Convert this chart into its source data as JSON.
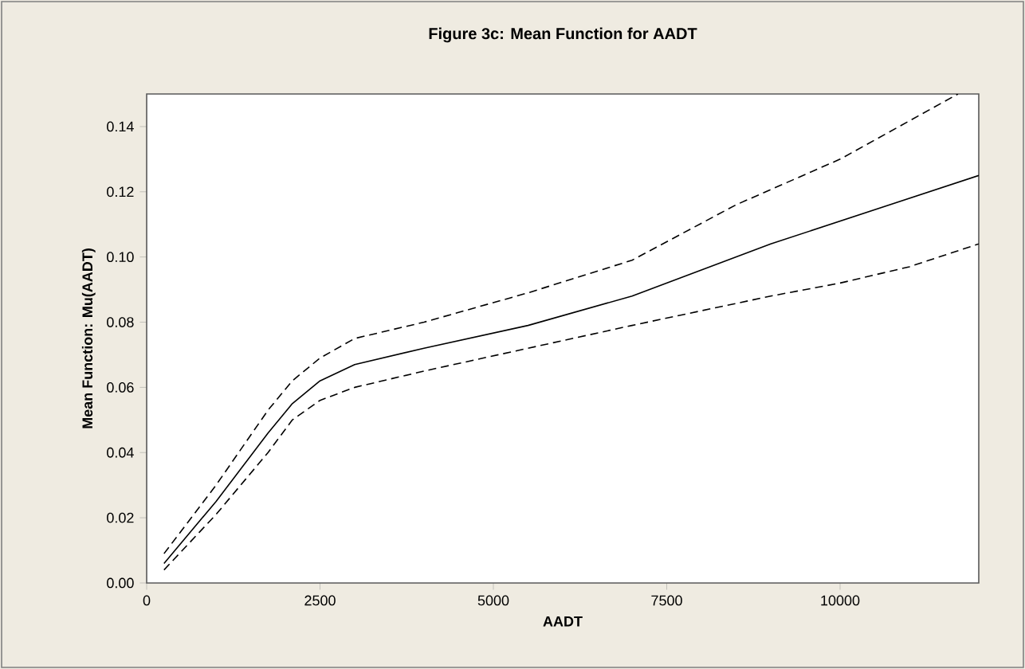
{
  "chart_data": {
    "type": "line",
    "title": "Figure 3c: Mean Function for AADT",
    "xlabel": "AADT",
    "ylabel": "Mean Function: Mu(AADT)",
    "xlim": [
      0,
      12000
    ],
    "ylim": [
      0,
      0.15
    ],
    "xticks": [
      0,
      2500,
      5000,
      7500,
      10000
    ],
    "yticks": [
      {
        "value": 0,
        "label": "0.00"
      },
      {
        "value": 0.02,
        "label": "0.02"
      },
      {
        "value": 0.04,
        "label": "0.04"
      },
      {
        "value": 0.06,
        "label": "0.06"
      },
      {
        "value": 0.08,
        "label": "0.08"
      },
      {
        "value": 0.1,
        "label": "0.10"
      },
      {
        "value": 0.12,
        "label": "0.12"
      },
      {
        "value": 0.14,
        "label": "0.14"
      }
    ],
    "series": [
      {
        "color": "#000000",
        "line_style": "dashed",
        "x": [
          250,
          1000,
          1750,
          2100,
          2500,
          3000,
          4000,
          5500,
          7000,
          8500,
          10000,
          11700
        ],
        "values": [
          0.009,
          0.03,
          0.053,
          0.062,
          0.069,
          0.075,
          0.08,
          0.089,
          0.099,
          0.116,
          0.13,
          0.15
        ]
      },
      {
        "color": "#000000",
        "line_style": "solid",
        "x": [
          250,
          1000,
          1750,
          2100,
          2500,
          3000,
          4000,
          5500,
          7000,
          9000,
          12000
        ],
        "values": [
          0.006,
          0.025,
          0.046,
          0.055,
          0.062,
          0.067,
          0.072,
          0.079,
          0.088,
          0.104,
          0.125
        ]
      },
      {
        "color": "#000000",
        "line_style": "dashed",
        "x": [
          250,
          1000,
          1750,
          2100,
          2500,
          3000,
          4000,
          5500,
          7000,
          9000,
          10000,
          11000,
          12000
        ],
        "values": [
          0.004,
          0.021,
          0.04,
          0.05,
          0.056,
          0.06,
          0.065,
          0.072,
          0.079,
          0.088,
          0.092,
          0.097,
          0.104
        ]
      }
    ]
  }
}
